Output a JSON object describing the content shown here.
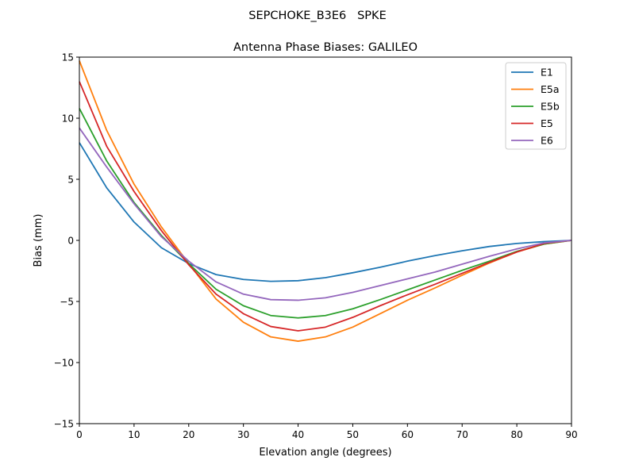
{
  "chart_data": {
    "type": "line",
    "suptitle": "SEPCHOKE_B3E6   SPKE",
    "title": "Antenna Phase Biases: GALILEO",
    "xlabel": "Elevation angle (degrees)",
    "ylabel": "Bias (mm)",
    "xlim": [
      0,
      90
    ],
    "ylim": [
      -15,
      15
    ],
    "xticks": [
      0,
      10,
      20,
      30,
      40,
      50,
      60,
      70,
      80,
      90
    ],
    "yticks": [
      -15,
      -10,
      -5,
      0,
      5,
      10,
      15
    ],
    "ytick_labels": [
      "−15",
      "−10",
      "−5",
      "0",
      "5",
      "10",
      "15"
    ],
    "grid": false,
    "legend_position": "top-right",
    "x": [
      0,
      5,
      10,
      15,
      20,
      25,
      30,
      35,
      40,
      45,
      50,
      55,
      60,
      65,
      70,
      75,
      80,
      85,
      90
    ],
    "series": [
      {
        "name": "E1",
        "color": "#1f77b4",
        "values": [
          8.0,
          4.3,
          1.5,
          -0.6,
          -1.9,
          -2.8,
          -3.2,
          -3.35,
          -3.3,
          -3.05,
          -2.65,
          -2.2,
          -1.7,
          -1.25,
          -0.85,
          -0.5,
          -0.25,
          -0.1,
          0
        ]
      },
      {
        "name": "E5a",
        "color": "#ff7f0e",
        "values": [
          14.7,
          9.0,
          4.6,
          1.1,
          -1.9,
          -4.8,
          -6.7,
          -7.9,
          -8.25,
          -7.9,
          -7.1,
          -6.0,
          -4.9,
          -3.9,
          -2.85,
          -1.85,
          -0.95,
          -0.3,
          0
        ]
      },
      {
        "name": "E5b",
        "color": "#2ca02c",
        "values": [
          10.8,
          6.5,
          3.1,
          0.4,
          -1.9,
          -4.0,
          -5.35,
          -6.15,
          -6.35,
          -6.15,
          -5.6,
          -4.85,
          -4.05,
          -3.25,
          -2.45,
          -1.7,
          -0.9,
          -0.3,
          0
        ]
      },
      {
        "name": "E5",
        "color": "#d62728",
        "values": [
          13.0,
          7.7,
          4.0,
          0.8,
          -2.0,
          -4.4,
          -6.0,
          -7.05,
          -7.4,
          -7.1,
          -6.3,
          -5.35,
          -4.45,
          -3.6,
          -2.7,
          -1.8,
          -0.95,
          -0.25,
          0
        ]
      },
      {
        "name": "E6",
        "color": "#9467bd",
        "values": [
          9.2,
          6.0,
          3.0,
          0.3,
          -1.7,
          -3.4,
          -4.4,
          -4.85,
          -4.9,
          -4.7,
          -4.25,
          -3.7,
          -3.15,
          -2.6,
          -1.95,
          -1.3,
          -0.7,
          -0.2,
          0
        ]
      }
    ]
  }
}
